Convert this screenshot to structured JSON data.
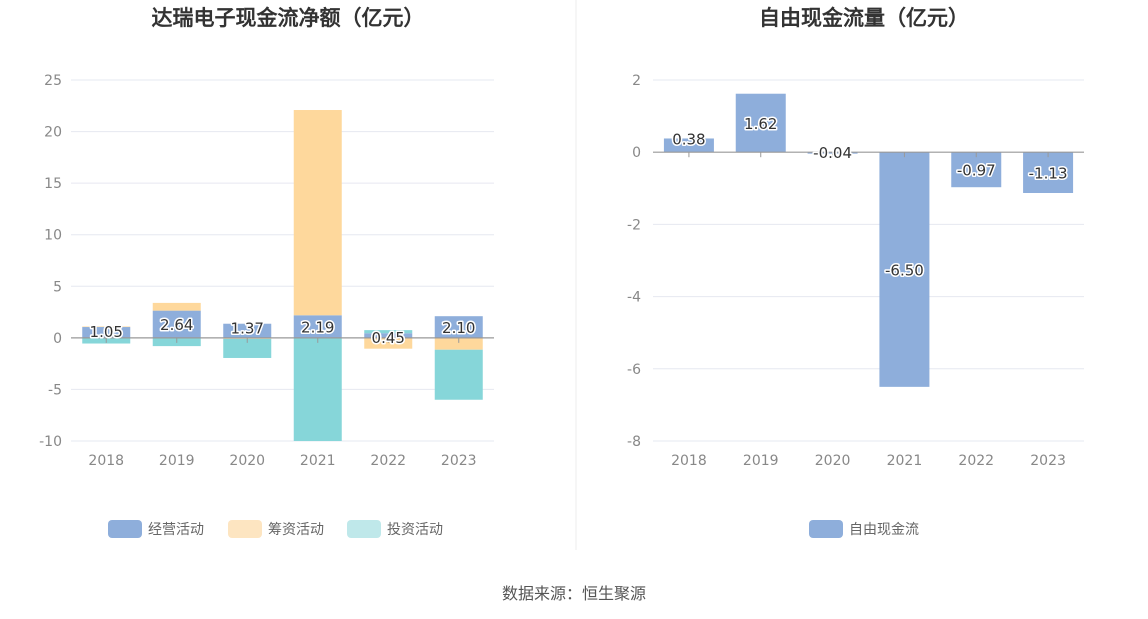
{
  "colors": {
    "operating": "#8eaedb",
    "financing": "#fed89c",
    "investing": "#86d6d9",
    "investing_legend": "#bfe8ea",
    "financing_legend": "#fde5c1",
    "free_cash": "#8eaedb",
    "grid": "#e6e8f0",
    "axis": "#999999"
  },
  "source_text": "数据来源：恒生聚源",
  "chart_data": [
    {
      "type": "bar",
      "stacked": true,
      "title": "达瑞电子现金流净额（亿元）",
      "categories": [
        "2018",
        "2019",
        "2020",
        "2021",
        "2022",
        "2023"
      ],
      "ylim": [
        -10,
        25
      ],
      "yticks": [
        25,
        20,
        15,
        10,
        5,
        0,
        -5,
        -10
      ],
      "ytick_labels": [
        "25",
        "20",
        "15",
        "10",
        "5",
        "0",
        "-5",
        "-10"
      ],
      "grid": true,
      "legend_position": "bottom",
      "labeled_series": "经营活动",
      "series": [
        {
          "name": "经营活动",
          "color_key": "operating",
          "values": [
            1.05,
            2.64,
            1.37,
            2.19,
            0.45,
            2.1
          ],
          "labels": [
            "1.05",
            "2.64",
            "1.37",
            "2.19",
            "0.45",
            "2.10"
          ]
        },
        {
          "name": "筹资活动",
          "color_key": "financing",
          "values": [
            0.05,
            0.75,
            -0.1,
            19.9,
            -1.05,
            -1.15
          ]
        },
        {
          "name": "投资活动",
          "color_key": "investing",
          "values": [
            -0.55,
            -0.8,
            -1.85,
            -10.0,
            0.3,
            -4.85
          ]
        }
      ]
    },
    {
      "type": "bar",
      "title": "自由现金流量（亿元）",
      "categories": [
        "2018",
        "2019",
        "2020",
        "2021",
        "2022",
        "2023"
      ],
      "ylim": [
        -8,
        2
      ],
      "yticks": [
        2,
        0,
        -2,
        -4,
        -6,
        -8
      ],
      "ytick_labels": [
        "2",
        "0",
        "-2",
        "-4",
        "-6",
        "-8"
      ],
      "grid": true,
      "legend_position": "bottom",
      "series": [
        {
          "name": "自由现金流",
          "color_key": "free_cash",
          "values": [
            0.38,
            1.62,
            -0.04,
            -6.5,
            -0.97,
            -1.13
          ],
          "labels": [
            "0.38",
            "1.62",
            "-0.04",
            "-6.50",
            "-0.97",
            "-1.13"
          ]
        }
      ]
    }
  ]
}
